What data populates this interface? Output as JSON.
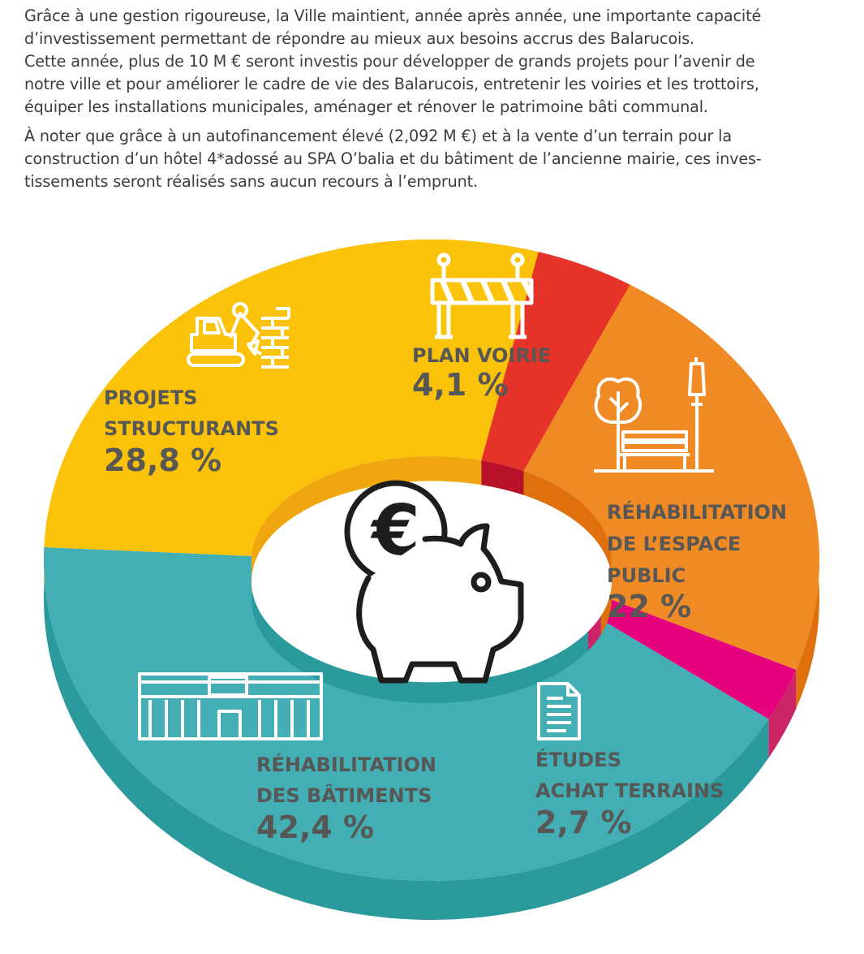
{
  "intro": {
    "line_1": "Grâce à une gestion rigoureuse, la Ville maintient, année après année, une importante capacité",
    "line_2": "d’investissement permettant de répondre au mieux aux besoins accrus des Balarucois.",
    "line_3": "Cette année, plus de 10 M € seront investis pour développer de grands projets pour l’avenir de",
    "line_4": "notre ville et pour améliorer le cadre de vie des Balarucois, entretenir les voiries et les trottoirs,",
    "line_5": "équiper les installations municipales, aménager et rénover le patrimoine bâti communal.",
    "line_6": "À noter que grâce à un autofinancement élevé (2,092 M €) et à la vente d’un terrain pour la",
    "line_7": "construction d’un hôtel 4*adossé au SPA O’balia et du bâtiment de l’ancienne mairie, ces inves-",
    "line_8": "tissements seront réalisés sans aucun recours à l’emprunt."
  },
  "chart_data": {
    "type": "pie",
    "style": "3d-donut",
    "center_icon": "piggy-bank-euro-icon",
    "legend": "none",
    "slices": [
      {
        "label_lines": [
          "PLAN VOIRIE"
        ],
        "value": 4.1,
        "value_label": "4,1 %",
        "color": "#e6332a",
        "side_color": "#b8122a",
        "icon": "road-barrier-icon"
      },
      {
        "label_lines": [
          "RÉHABILITATION",
          "DE L’ESPACE",
          "PUBLIC"
        ],
        "value": 22,
        "value_label": "22 %",
        "color": "#f08a24",
        "side_color": "#e06f0e",
        "icon": "park-bench-icon"
      },
      {
        "label_lines": [
          "ÉTUDES",
          "ACHAT TERRAINS"
        ],
        "value": 2.7,
        "value_label": "2,7 %",
        "color": "#e5007e",
        "side_color": "#cc2467",
        "icon": "document-icon"
      },
      {
        "label_lines": [
          "RÉHABILITATION",
          "DES BÂTIMENTS"
        ],
        "value": 42.4,
        "value_label": "42,4 %",
        "color": "#44aeb5",
        "side_color": "#2a9a9c",
        "icon": "building-icon"
      },
      {
        "label_lines": [
          "PROJETS",
          "STRUCTURANTS"
        ],
        "value": 28.8,
        "value_label": "28,8 %",
        "color": "#fbc20a",
        "side_color": "#f0a60e",
        "icon": "excavator-icon"
      }
    ]
  }
}
